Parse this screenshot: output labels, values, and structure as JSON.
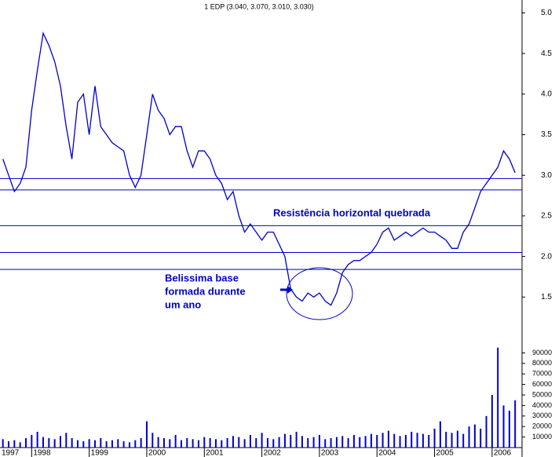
{
  "chart_data": [
    {
      "type": "line",
      "title": "1 EDP (3.040, 3.070, 3.010, 3.030)",
      "color": "#0000cc",
      "x": [
        1997.5,
        1997.6,
        1997.7,
        1997.8,
        1997.9,
        1998.0,
        1998.1,
        1998.2,
        1998.3,
        1998.4,
        1998.5,
        1998.6,
        1998.7,
        1998.8,
        1998.9,
        1999.0,
        1999.1,
        1999.2,
        1999.3,
        1999.4,
        1999.5,
        1999.6,
        1999.7,
        1999.8,
        1999.9,
        2000.0,
        2000.1,
        2000.2,
        2000.3,
        2000.4,
        2000.5,
        2000.6,
        2000.7,
        2000.8,
        2000.9,
        2001.0,
        2001.1,
        2001.2,
        2001.3,
        2001.4,
        2001.5,
        2001.6,
        2001.7,
        2001.8,
        2001.9,
        2002.0,
        2002.1,
        2002.2,
        2002.3,
        2002.4,
        2002.5,
        2002.6,
        2002.7,
        2002.8,
        2002.9,
        2003.0,
        2003.1,
        2003.2,
        2003.3,
        2003.4,
        2003.5,
        2003.6,
        2003.7,
        2003.8,
        2003.9,
        2004.0,
        2004.1,
        2004.2,
        2004.3,
        2004.4,
        2004.5,
        2004.6,
        2004.7,
        2004.8,
        2004.9,
        2005.0,
        2005.1,
        2005.2,
        2005.3,
        2005.4,
        2005.5,
        2005.6,
        2005.7,
        2005.8,
        2005.9,
        2006.0,
        2006.1,
        2006.2,
        2006.3,
        2006.4
      ],
      "values": [
        3.2,
        3.0,
        2.8,
        2.9,
        3.1,
        3.8,
        4.3,
        4.75,
        4.6,
        4.4,
        4.1,
        3.6,
        3.2,
        3.9,
        4.0,
        3.5,
        4.1,
        3.6,
        3.5,
        3.4,
        3.35,
        3.3,
        3.0,
        2.85,
        3.0,
        3.5,
        4.0,
        3.8,
        3.7,
        3.5,
        3.6,
        3.6,
        3.3,
        3.1,
        3.3,
        3.3,
        3.2,
        3.0,
        2.9,
        2.7,
        2.8,
        2.5,
        2.3,
        2.4,
        2.3,
        2.2,
        2.3,
        2.3,
        2.15,
        2.0,
        1.6,
        1.5,
        1.45,
        1.55,
        1.5,
        1.55,
        1.45,
        1.4,
        1.55,
        1.8,
        1.9,
        1.95,
        1.95,
        2.0,
        2.05,
        2.15,
        2.3,
        2.35,
        2.2,
        2.25,
        2.3,
        2.25,
        2.3,
        2.35,
        2.3,
        2.3,
        2.25,
        2.2,
        2.1,
        2.1,
        2.3,
        2.4,
        2.6,
        2.8,
        2.9,
        3.0,
        3.1,
        3.3,
        3.2,
        3.03
      ],
      "xlim": [
        1997.45,
        2006.52
      ],
      "ylim": [
        1.0,
        5.13
      ],
      "yticks": [
        1.5,
        {
          "value": 2,
          "label": "2.0"
        },
        2.5,
        {
          "value": 3,
          "label": "3.0"
        },
        3.5,
        {
          "value": 4,
          "label": "4.0"
        },
        4.5,
        {
          "value": 5,
          "label": "5.0"
        }
      ],
      "hlines": [
        2.96,
        2.82,
        2.38,
        2.05,
        1.84
      ],
      "annotations": [
        "Resistência horizontal quebrada",
        "Belissima base",
        "formada durante",
        "um ano"
      ]
    },
    {
      "type": "bar",
      "color": "#0000cc",
      "x": [
        1997.5,
        1997.6,
        1997.7,
        1997.8,
        1997.9,
        1998.0,
        1998.1,
        1998.2,
        1998.3,
        1998.4,
        1998.5,
        1998.6,
        1998.7,
        1998.8,
        1998.9,
        1999.0,
        1999.1,
        1999.2,
        1999.3,
        1999.4,
        1999.5,
        1999.6,
        1999.7,
        1999.8,
        1999.9,
        2000.0,
        2000.1,
        2000.2,
        2000.3,
        2000.4,
        2000.5,
        2000.6,
        2000.7,
        2000.8,
        2000.9,
        2001.0,
        2001.1,
        2001.2,
        2001.3,
        2001.4,
        2001.5,
        2001.6,
        2001.7,
        2001.8,
        2001.9,
        2002.0,
        2002.1,
        2002.2,
        2002.3,
        2002.4,
        2002.5,
        2002.6,
        2002.7,
        2002.8,
        2002.9,
        2003.0,
        2003.1,
        2003.2,
        2003.3,
        2003.4,
        2003.5,
        2003.6,
        2003.7,
        2003.8,
        2003.9,
        2004.0,
        2004.1,
        2004.2,
        2004.3,
        2004.4,
        2004.5,
        2004.6,
        2004.7,
        2004.8,
        2004.9,
        2005.0,
        2005.1,
        2005.2,
        2005.3,
        2005.4,
        2005.5,
        2005.6,
        2005.7,
        2005.8,
        2005.9,
        2006.0,
        2006.1,
        2006.2,
        2006.3,
        2006.4
      ],
      "values": [
        8000,
        6000,
        7000,
        5000,
        9000,
        12000,
        15000,
        10000,
        9000,
        8000,
        11000,
        14000,
        9000,
        7000,
        6000,
        8000,
        7000,
        9000,
        6000,
        7000,
        8000,
        6000,
        5000,
        7000,
        9000,
        25000,
        14000,
        10000,
        9000,
        8000,
        12000,
        7000,
        9000,
        8000,
        7000,
        10000,
        9000,
        8000,
        7000,
        9000,
        11000,
        10000,
        8000,
        12000,
        9000,
        14000,
        9000,
        8000,
        10000,
        13000,
        12000,
        15000,
        11000,
        9000,
        10000,
        12000,
        8000,
        9000,
        10000,
        11000,
        9000,
        12000,
        10000,
        11000,
        13000,
        12000,
        14000,
        16000,
        13000,
        11000,
        12000,
        15000,
        14000,
        13000,
        12000,
        18000,
        25000,
        15000,
        14000,
        16000,
        13000,
        20000,
        22000,
        18000,
        30000,
        50000,
        95000,
        40000,
        35000,
        45000
      ],
      "xlim": [
        1997.45,
        2006.52
      ],
      "ylim": [
        0,
        97000
      ],
      "yticks": [
        10000,
        20000,
        30000,
        40000,
        50000,
        60000,
        70000,
        80000,
        90000
      ],
      "xticks": [
        1997,
        1998,
        1999,
        2000,
        2001,
        2002,
        2003,
        2004,
        2005,
        2006
      ]
    }
  ]
}
